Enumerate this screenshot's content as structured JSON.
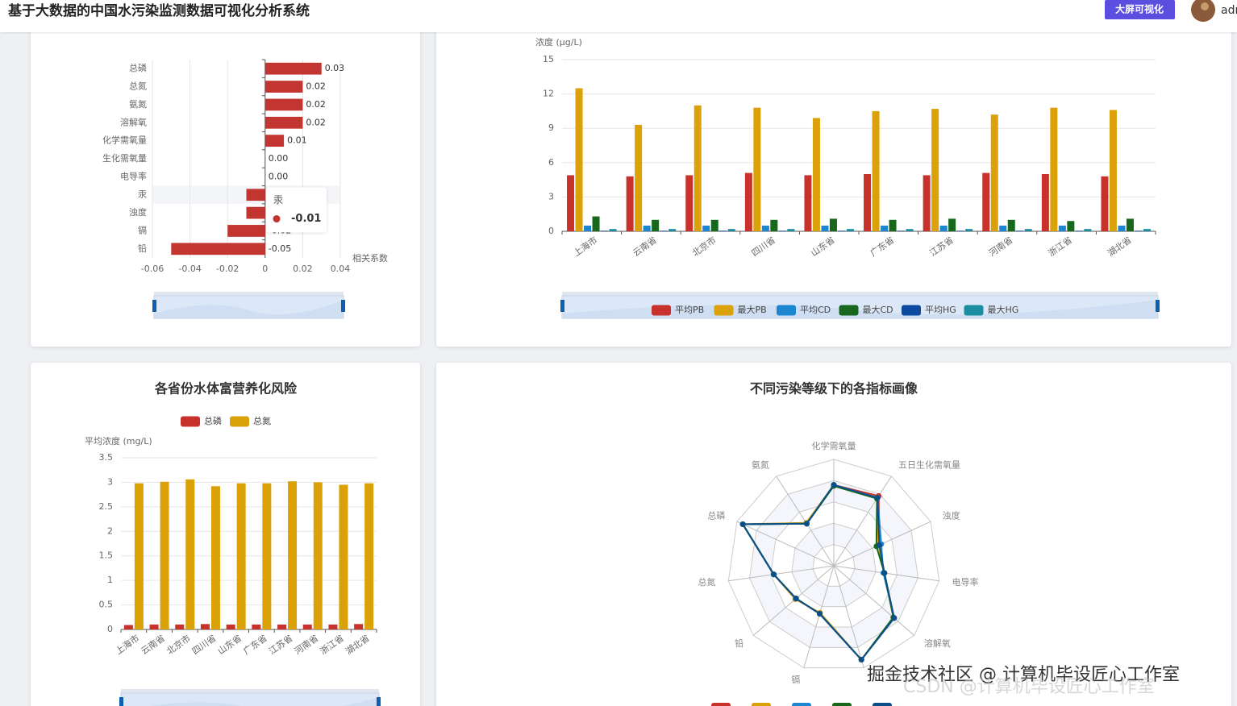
{
  "header": {
    "title": "基于大数据的中国水污染监测数据可视化分析系统",
    "button": "大屏可视化",
    "user": "admin"
  },
  "chart_data": [
    {
      "type": "hbar",
      "categories": [
        "总磷",
        "总氮",
        "氨氮",
        "溶解氧",
        "化学需氧量",
        "生化需氧量",
        "电导率",
        "汞",
        "浊度",
        "镉",
        "铅"
      ],
      "values": [
        0.03,
        0.02,
        0.02,
        0.02,
        0.01,
        0,
        0,
        -0.01,
        -0.01,
        -0.02,
        -0.05
      ],
      "value_labels": [
        "0.03",
        "0.02",
        "0.02",
        "0.02",
        "0.01",
        "0.00",
        "0.00",
        "-0.01",
        "-0.01",
        "-0.02",
        "-0.05"
      ],
      "color": "#c23531",
      "xlim": [
        -0.06,
        0.04
      ],
      "xticks": [
        -0.06,
        -0.04,
        -0.02,
        0,
        0.02,
        0.04
      ],
      "x_label": "相关系数",
      "grid": true,
      "tooltip": {
        "category": "汞",
        "value": -0.01
      }
    },
    {
      "type": "bar",
      "y_label": "浓度 (μg/L)",
      "ylim": [
        0,
        15
      ],
      "yticks": [
        0,
        3,
        6,
        9,
        12,
        15
      ],
      "grid": true,
      "categories": [
        "上海市",
        "云南省",
        "北京市",
        "四川省",
        "山东省",
        "广东省",
        "江苏省",
        "河南省",
        "浙江省",
        "湖北省"
      ],
      "series": [
        {
          "name": "平均PB",
          "color": "#c8312c",
          "values": [
            4.9,
            4.8,
            4.9,
            5.1,
            4.9,
            5.0,
            4.9,
            5.1,
            5.0,
            4.8
          ]
        },
        {
          "name": "最大PB",
          "color": "#dba108",
          "values": [
            12.5,
            9.3,
            11.0,
            10.8,
            9.9,
            10.5,
            10.7,
            10.2,
            10.8,
            10.6
          ]
        },
        {
          "name": "平均CD",
          "color": "#1d86d1",
          "values": [
            0.5,
            0.5,
            0.5,
            0.5,
            0.5,
            0.5,
            0.5,
            0.5,
            0.5,
            0.5
          ]
        },
        {
          "name": "最大CD",
          "color": "#17681d",
          "values": [
            1.3,
            1.0,
            1.0,
            1.0,
            1.1,
            1.0,
            1.1,
            1.0,
            0.9,
            1.1
          ]
        },
        {
          "name": "平均HG",
          "color": "#0b4a9e",
          "values": [
            0.05,
            0.05,
            0.05,
            0.05,
            0.05,
            0.05,
            0.05,
            0.05,
            0.05,
            0.05
          ]
        },
        {
          "name": "最大HG",
          "color": "#1b8da0",
          "values": [
            0.2,
            0.2,
            0.2,
            0.2,
            0.2,
            0.2,
            0.2,
            0.2,
            0.2,
            0.2
          ]
        }
      ]
    },
    {
      "type": "bar",
      "title": "各省份水体富营养化风险",
      "y_label": "平均浓度 (mg/L)",
      "ylim": [
        0,
        3.5
      ],
      "yticks": [
        0,
        0.5,
        1,
        1.5,
        2,
        2.5,
        3,
        3.5
      ],
      "grid": true,
      "categories": [
        "上海市",
        "云南省",
        "北京市",
        "四川省",
        "山东省",
        "广东省",
        "江苏省",
        "河南省",
        "浙江省",
        "湖北省"
      ],
      "series": [
        {
          "name": "总磷",
          "color": "#c8312c",
          "values": [
            0.09,
            0.1,
            0.1,
            0.11,
            0.1,
            0.1,
            0.1,
            0.1,
            0.1,
            0.11
          ]
        },
        {
          "name": "总氮",
          "color": "#dba108",
          "values": [
            2.98,
            3.01,
            3.06,
            2.92,
            2.98,
            2.98,
            3.02,
            3.0,
            2.95,
            2.98
          ]
        }
      ]
    },
    {
      "type": "radar",
      "title": "不同污染等级下的各指标画像",
      "categories": [
        "化学需氧量",
        "五日生化需氧量",
        "浊度",
        "电导率",
        "溶解氧",
        null,
        "镉",
        "铅",
        "总氮",
        "总磷",
        "氨氮"
      ],
      "rlim": [
        0,
        100
      ],
      "series": [
        {
          "color": "#c8312c",
          "values": [
            76,
            78,
            47,
            48,
            75,
            92,
            47,
            47,
            57,
            94,
            47
          ]
        },
        {
          "color": "#dba108",
          "values": [
            76,
            76,
            46,
            48,
            74,
            92,
            46,
            48,
            57,
            94,
            48
          ]
        },
        {
          "color": "#1d86d1",
          "values": [
            76,
            76,
            49,
            47,
            75,
            92,
            47,
            47,
            57,
            94,
            47
          ]
        },
        {
          "color": "#17681d",
          "values": [
            75,
            75,
            44,
            48,
            74,
            92,
            47,
            47,
            57,
            94,
            47
          ]
        },
        {
          "color": "#0b4f8a",
          "values": [
            76,
            76,
            47,
            48,
            75,
            92,
            47,
            47,
            57,
            94,
            47
          ]
        }
      ]
    }
  ],
  "watermarks": [
    "掘金技术社区 @ 计算机毕设匠心工作室",
    "CSDN @计算机毕设匠心工作室"
  ]
}
